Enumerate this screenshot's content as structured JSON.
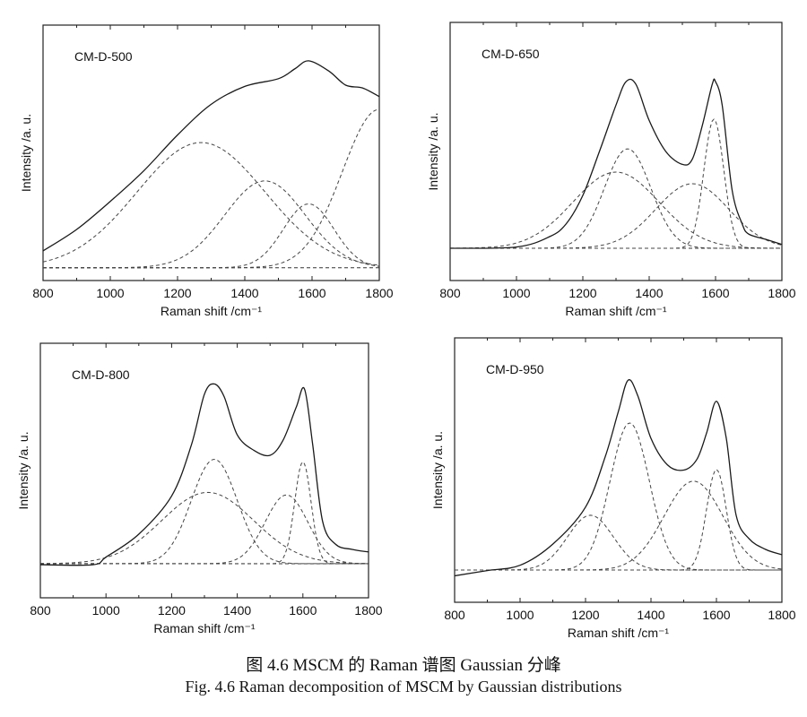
{
  "figure": {
    "caption_cn": "图 4.6 MSCM 的 Raman 谱图 Gaussian 分峰",
    "caption_en": "Fig. 4.6 Raman decomposition of MSCM by Gaussian distributions"
  },
  "chart_data": [
    {
      "type": "line",
      "title": "CM-D-500",
      "xlabel": "Raman shift /cm⁻¹",
      "ylabel": "Intensity /a. u.",
      "xlim": [
        800,
        1800
      ],
      "ylim": [
        0,
        100
      ],
      "xticks": [
        800,
        1000,
        1200,
        1400,
        1600,
        1800
      ],
      "baseline": 5,
      "measured": {
        "x": [
          800,
          900,
          1000,
          1100,
          1200,
          1300,
          1400,
          1500,
          1550,
          1590,
          1650,
          1700,
          1750,
          1800
        ],
        "y": [
          11.6,
          20,
          31,
          43,
          57,
          69,
          76,
          79,
          83,
          86,
          82,
          76.5,
          75.4,
          72
        ]
      },
      "gaussian_components": [
        {
          "center": 1270,
          "amplitude": 49,
          "sigma": 190
        },
        {
          "center": 1460,
          "amplitude": 34,
          "sigma": 120
        },
        {
          "center": 1590,
          "amplitude": 25,
          "sigma": 75
        },
        {
          "center": 1800,
          "amplitude": 62,
          "sigma": 110
        }
      ]
    },
    {
      "type": "line",
      "title": "CM-D-650",
      "xlabel": "Raman shift /cm⁻¹",
      "ylabel": "Intensity /a. u.",
      "xlim": [
        800,
        1800
      ],
      "ylim": [
        0,
        100
      ],
      "xticks": [
        800,
        1000,
        1200,
        1400,
        1600,
        1800
      ],
      "baseline": 12.5,
      "measured": {
        "x": [
          800,
          1000,
          1100,
          1150,
          1200,
          1250,
          1300,
          1330,
          1360,
          1400,
          1450,
          1500,
          1530,
          1560,
          1590,
          1600,
          1620,
          1650,
          1680,
          1700,
          1750,
          1800
        ],
        "y": [
          12.5,
          13,
          17,
          22,
          33,
          50,
          68,
          77,
          76,
          62,
          50,
          45,
          47,
          60,
          76,
          77,
          68,
          35,
          22,
          18,
          16,
          14
        ]
      },
      "gaussian_components": [
        {
          "center": 1335,
          "amplitude": 38.5,
          "sigma": 70
        },
        {
          "center": 1300,
          "amplitude": 29.5,
          "sigma": 130
        },
        {
          "center": 1530,
          "amplitude": 25,
          "sigma": 110
        },
        {
          "center": 1595,
          "amplitude": 50,
          "sigma": 30
        }
      ]
    },
    {
      "type": "line",
      "title": "CM-D-800",
      "xlabel": "Raman shift /cm⁻¹",
      "ylabel": "Intensity /a. u.",
      "xlim": [
        800,
        1800
      ],
      "ylim": [
        0,
        100
      ],
      "xticks": [
        800,
        1000,
        1200,
        1400,
        1600,
        1800
      ],
      "baseline": 13.4,
      "measured": {
        "x": [
          800,
          960,
          1000,
          1100,
          1200,
          1260,
          1300,
          1330,
          1360,
          1400,
          1450,
          1500,
          1540,
          1580,
          1605,
          1630,
          1660,
          1700,
          1750,
          1800
        ],
        "y": [
          13,
          13,
          16,
          25,
          40,
          60,
          80,
          84,
          79,
          64,
          58,
          56,
          62,
          75,
          82,
          60,
          30,
          21,
          19,
          18
        ]
      },
      "gaussian_components": [
        {
          "center": 1330,
          "amplitude": 41,
          "sigma": 70
        },
        {
          "center": 1310,
          "amplitude": 28,
          "sigma": 140
        },
        {
          "center": 1550,
          "amplitude": 27,
          "sigma": 65
        },
        {
          "center": 1600,
          "amplitude": 40,
          "sigma": 25
        }
      ]
    },
    {
      "type": "line",
      "title": "CM-D-950",
      "xlabel": "Raman shift /cm⁻¹",
      "ylabel": "Intensity /a. u.",
      "xlim": [
        800,
        1800
      ],
      "ylim": [
        0,
        100
      ],
      "xticks": [
        800,
        1000,
        1200,
        1400,
        1600,
        1800
      ],
      "baseline": 12.2,
      "measured": {
        "x": [
          800,
          900,
          1000,
          1100,
          1200,
          1260,
          1300,
          1330,
          1360,
          1400,
          1450,
          1500,
          1540,
          1570,
          1600,
          1630,
          1660,
          1700,
          1750,
          1800
        ],
        "y": [
          10,
          12,
          14,
          22,
          36,
          55,
          72,
          84,
          78,
          62,
          52,
          50,
          54,
          64,
          76,
          62,
          33,
          24,
          20,
          18
        ]
      },
      "gaussian_components": [
        {
          "center": 1335,
          "amplitude": 55.6,
          "sigma": 60
        },
        {
          "center": 1215,
          "amplitude": 20.7,
          "sigma": 70
        },
        {
          "center": 1530,
          "amplitude": 33.6,
          "sigma": 90
        },
        {
          "center": 1600,
          "amplitude": 38,
          "sigma": 30
        }
      ]
    }
  ]
}
